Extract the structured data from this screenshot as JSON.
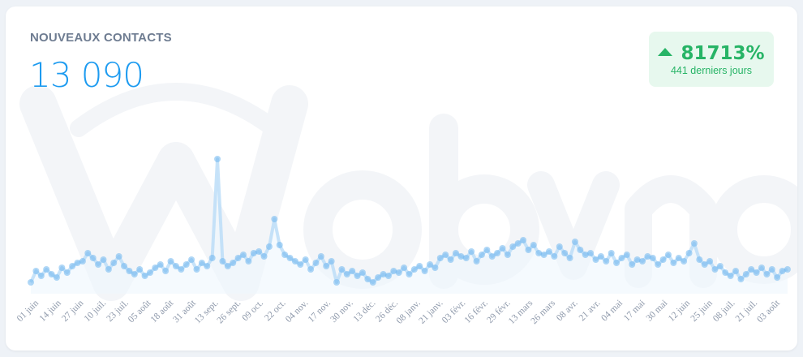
{
  "card": {
    "title": "NOUVEAUX CONTACTS",
    "total": "13 090",
    "watermark": "Webyneo"
  },
  "badge": {
    "icon": "triangle-up-icon",
    "percent": "81713%",
    "period": "441 derniers jours",
    "color": "#27b466",
    "background": "#e7f8ee"
  },
  "colors": {
    "accent": "#1d9bf0",
    "series": "#6fb6ee"
  },
  "chart_data": {
    "type": "line",
    "title": "",
    "xlabel": "",
    "ylabel": "",
    "grid": false,
    "legend": "none",
    "x_step_days": 3,
    "ylim": [
      0,
      212
    ],
    "x_tick_labels": [
      "01 juin",
      "14 juin",
      "27 juin",
      "10 juil.",
      "23 juil.",
      "05 août",
      "18 août",
      "31 août",
      "13 sept.",
      "26 sept.",
      "09 oct.",
      "22 oct.",
      "04 nov.",
      "17 nov.",
      "30 nov.",
      "13 déc.",
      "26 déc.",
      "08 janv.",
      "21 janv.",
      "03 févr.",
      "16 févr.",
      "29 févr.",
      "13 mars",
      "26 mars",
      "08 avr.",
      "21 avr.",
      "04 mai",
      "17 mai",
      "30 mai",
      "12 juin",
      "25 juin",
      "08 juil.",
      "21 juil.",
      "03 août"
    ],
    "x_tick_interval_days": 13,
    "values": [
      14,
      28,
      22,
      30,
      24,
      20,
      32,
      26,
      34,
      38,
      40,
      50,
      44,
      36,
      42,
      30,
      38,
      46,
      34,
      28,
      24,
      30,
      22,
      26,
      32,
      36,
      28,
      40,
      34,
      30,
      36,
      42,
      30,
      38,
      34,
      44,
      166,
      40,
      34,
      38,
      44,
      48,
      40,
      50,
      52,
      46,
      58,
      92,
      60,
      48,
      44,
      40,
      36,
      42,
      30,
      38,
      46,
      34,
      40,
      14,
      30,
      24,
      28,
      22,
      26,
      18,
      14,
      20,
      24,
      22,
      28,
      26,
      32,
      24,
      30,
      34,
      28,
      36,
      32,
      44,
      48,
      42,
      50,
      46,
      44,
      52,
      40,
      48,
      54,
      46,
      50,
      56,
      48,
      58,
      62,
      66,
      54,
      60,
      50,
      48,
      52,
      46,
      58,
      50,
      44,
      64,
      54,
      48,
      50,
      42,
      46,
      40,
      50,
      38,
      44,
      48,
      36,
      42,
      40,
      46,
      44,
      36,
      42,
      48,
      38,
      44,
      40,
      50,
      62,
      42,
      36,
      40,
      30,
      34,
      26,
      22,
      28,
      18,
      24,
      30,
      26,
      32,
      24,
      30,
      20,
      28,
      30
    ]
  }
}
